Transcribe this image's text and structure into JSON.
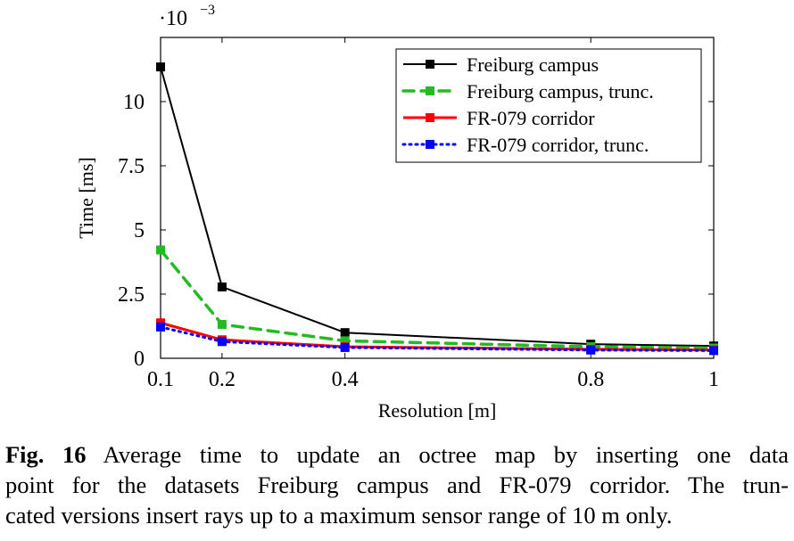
{
  "chart_data": {
    "type": "line",
    "xlabel": "Resolution [m]",
    "ylabel": "Time [ms]",
    "exponent": "·10",
    "exponent_power": "−3",
    "xlim": [
      0.1,
      1.0
    ],
    "ylim": [
      0,
      12.5
    ],
    "xticks": [
      0.1,
      0.2,
      0.4,
      0.8,
      1.0
    ],
    "xtick_labels": [
      "0.1",
      "0.2",
      "0.4",
      "0.8",
      "1"
    ],
    "yticks": [
      0,
      2.5,
      5,
      7.5,
      10
    ],
    "ytick_labels": [
      "0",
      "2.5",
      "5",
      "7.5",
      "10"
    ],
    "grid": false,
    "legend_position": "top-right",
    "series": [
      {
        "name": "Freiburg campus",
        "color": "#000000",
        "style": "solid",
        "x": [
          0.1,
          0.2,
          0.4,
          0.8,
          1.0
        ],
        "y": [
          11.35,
          2.78,
          1.0,
          0.55,
          0.48
        ]
      },
      {
        "name": "Freiburg campus, trunc.",
        "color": "#22bb22",
        "style": "dashed",
        "x": [
          0.1,
          0.2,
          0.4,
          0.8,
          1.0
        ],
        "y": [
          4.22,
          1.32,
          0.68,
          0.45,
          0.4
        ]
      },
      {
        "name": "FR-079 corridor",
        "color": "#ff0000",
        "style": "solid",
        "x": [
          0.1,
          0.2,
          0.4,
          0.8,
          1.0
        ],
        "y": [
          1.38,
          0.72,
          0.45,
          0.35,
          0.32
        ]
      },
      {
        "name": "FR-079 corridor, trunc.",
        "color": "#0000ff",
        "style": "dotted",
        "x": [
          0.1,
          0.2,
          0.4,
          0.8,
          1.0
        ],
        "y": [
          1.22,
          0.65,
          0.42,
          0.32,
          0.3
        ]
      }
    ]
  },
  "caption": {
    "label": "Fig. 16",
    "line1": "Average time to update an octree map by inserting one data",
    "line2": "point for the datasets Freiburg campus and FR-079 corridor. The trun-",
    "line3": "cated versions insert rays up to a maximum sensor range of 10 m only."
  }
}
